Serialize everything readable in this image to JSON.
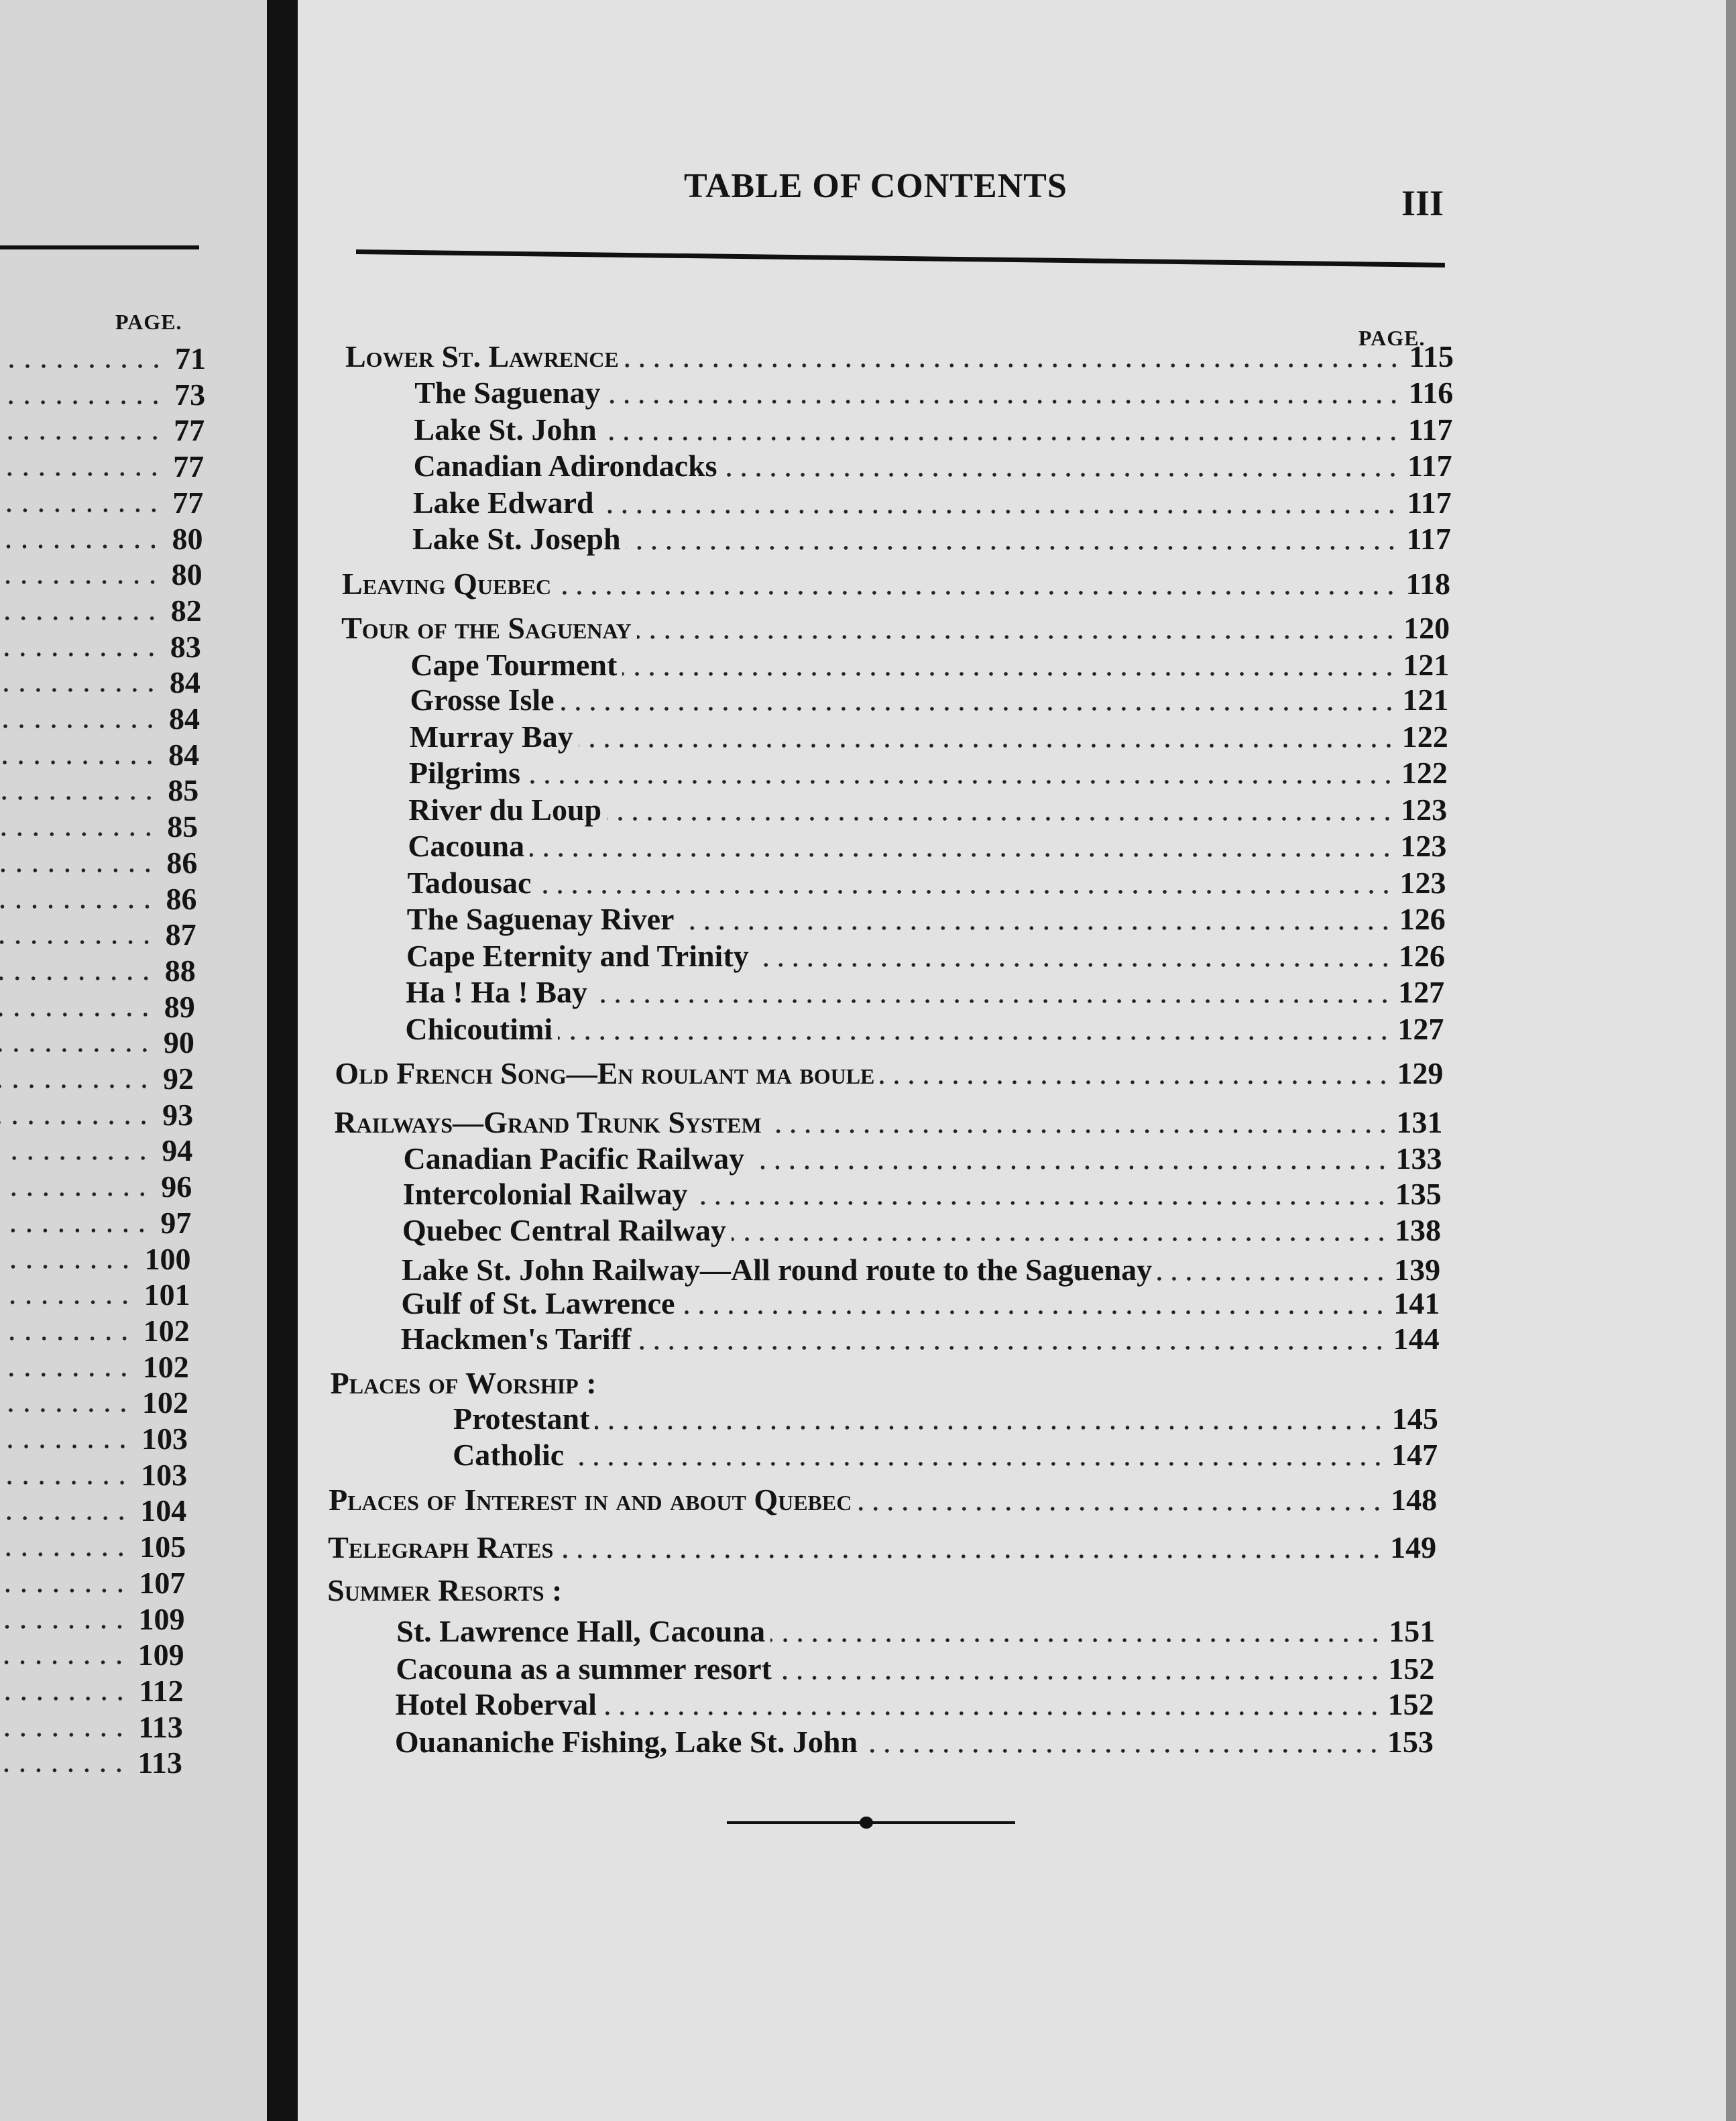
{
  "left_page": {
    "page_header": "PAGE.",
    "pages": [
      "71",
      "73",
      "77",
      "77",
      "77",
      "80",
      "80",
      "82",
      "83",
      "84",
      "84",
      "84",
      "85",
      "85",
      "86",
      "86",
      "87",
      "88",
      "89",
      "90",
      "92",
      "93",
      "94",
      "96",
      "97",
      "100",
      "101",
      "102",
      "102",
      "102",
      "103",
      "103",
      "104",
      "105",
      "107",
      "109",
      "109",
      "112",
      "113",
      "113"
    ]
  },
  "right_page": {
    "title": "TABLE OF CONTENTS",
    "page_number": "III",
    "page_header": "PAGE.",
    "entries": [
      {
        "label": "Lower St. Lawrence",
        "level": 0,
        "page": "115"
      },
      {
        "label": "The Saguenay",
        "level": 1,
        "page": "116"
      },
      {
        "label": "Lake St. John",
        "level": 1,
        "page": "117"
      },
      {
        "label": "Canadian Adirondacks",
        "level": 1,
        "page": "117"
      },
      {
        "label": "Lake Edward",
        "level": 1,
        "page": "117"
      },
      {
        "label": "Lake St. Joseph",
        "level": 1,
        "page": "117"
      },
      {
        "label": "Leaving Quebec",
        "level": 0,
        "page": "118"
      },
      {
        "label": "Tour of the Saguenay",
        "level": 0,
        "page": "120"
      },
      {
        "label": "Cape Tourment",
        "level": 1,
        "page": "121"
      },
      {
        "label": "Grosse Isle",
        "level": 1,
        "page": "121"
      },
      {
        "label": "Murray Bay",
        "level": 1,
        "page": "122"
      },
      {
        "label": "Pilgrims",
        "level": 1,
        "page": "122"
      },
      {
        "label": "River du Loup",
        "level": 1,
        "page": "123"
      },
      {
        "label": "Cacouna",
        "level": 1,
        "page": "123"
      },
      {
        "label": "Tadousac",
        "level": 1,
        "page": "123"
      },
      {
        "label": "The Saguenay River",
        "level": 1,
        "page": "126"
      },
      {
        "label": "Cape Eternity and Trinity",
        "level": 1,
        "page": "126"
      },
      {
        "label": "Ha ! Ha ! Bay",
        "level": 1,
        "page": "127"
      },
      {
        "label": "Chicoutimi",
        "level": 1,
        "page": "127"
      },
      {
        "label": "Old French Song—En roulant ma boule",
        "level": 0,
        "page": "129"
      },
      {
        "label": "Railways—Grand Trunk System",
        "level": 0,
        "page": "131"
      },
      {
        "label": "Canadian Pacific Railway",
        "level": 1,
        "page": "133"
      },
      {
        "label": "Intercolonial Railway",
        "level": 1,
        "page": "135"
      },
      {
        "label": "Quebec Central Railway",
        "level": 1,
        "page": "138"
      },
      {
        "label": "Lake St. John Railway—All round route to the Saguenay",
        "level": 1,
        "page": "139"
      },
      {
        "label": "Gulf of St. Lawrence",
        "level": 1,
        "page": "141"
      },
      {
        "label": "Hackmen's Tariff",
        "level": 1,
        "page": "144"
      },
      {
        "label": "Places of Worship :",
        "level": 0,
        "page": ""
      },
      {
        "label": "Protestant",
        "level": 2,
        "page": "145"
      },
      {
        "label": "Catholic",
        "level": 2,
        "page": "147"
      },
      {
        "label": "Places of Interest in and about Quebec",
        "level": 0,
        "page": "148"
      },
      {
        "label": "Telegraph Rates",
        "level": 0,
        "page": "149"
      },
      {
        "label": "Summer Resorts :",
        "level": 0,
        "page": ""
      },
      {
        "label": "St. Lawrence Hall, Cacouna",
        "level": 1,
        "page": "151"
      },
      {
        "label": "Cacouna as a summer resort",
        "level": 1,
        "page": "152"
      },
      {
        "label": "Hotel Roberval",
        "level": 1,
        "page": "152"
      },
      {
        "label": "Ouananiche Fishing, Lake St. John",
        "level": 1,
        "page": "153"
      }
    ]
  }
}
